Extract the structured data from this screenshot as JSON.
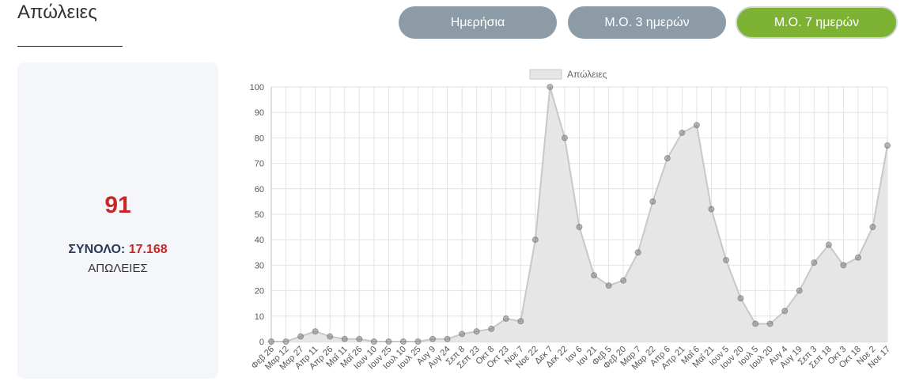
{
  "header": {
    "title": "Απώλειες"
  },
  "tabs": [
    {
      "label": "Ημερήσια",
      "active": false
    },
    {
      "label": "Μ.Ο. 3 ημερών",
      "active": false
    },
    {
      "label": "Μ.Ο. 7 ημερών",
      "active": true
    }
  ],
  "stats": {
    "value": "91",
    "total_label": "ΣΥΝΟΛΟ:",
    "total_value": "17.168",
    "caption": "ΑΠΩΛΕΙΕΣ"
  },
  "colors": {
    "tab_inactive": "#8c9ba5",
    "tab_active": "#7db233",
    "highlight_red": "#c62828",
    "series_fill": "#e6e6e6",
    "series_line": "#c8c8c8",
    "point": "#6b6b6b"
  },
  "chart_data": {
    "type": "area",
    "legend": {
      "position": "top",
      "label": "Απώλειες"
    },
    "grid": true,
    "ylim": [
      0,
      100
    ],
    "yticks": [
      0,
      10,
      20,
      30,
      40,
      50,
      60,
      70,
      80,
      90,
      100
    ],
    "xticks": [
      "Φεβ 26",
      "Μαρ 12",
      "Μαρ 27",
      "Απρ 11",
      "Απρ 26",
      "Μαΐ 11",
      "Μαΐ 26",
      "Ιουν 10",
      "Ιουν 25",
      "Ιουλ 10",
      "Ιουλ 25",
      "Αυγ 9",
      "Αυγ 24",
      "Σεπ 8",
      "Σεπ 23",
      "Οκτ 8",
      "Οκτ 23",
      "Νοε 7",
      "Νοε 22",
      "Δεκ 7",
      "Δεκ 22",
      "Ιαν 6",
      "Ιαν 21",
      "Φεβ 5",
      "Φεβ 20",
      "Μαρ 7",
      "Μαρ 22",
      "Απρ 6",
      "Απρ 21",
      "Μαΐ 6",
      "Μαΐ 21",
      "Ιουν 5",
      "Ιουν 20",
      "Ιουλ 5",
      "Ιουλ 20",
      "Αυγ 4",
      "Αυγ 19",
      "Σεπ 3",
      "Σεπ 18",
      "Οκτ 3",
      "Οκτ 18",
      "Νοε 2",
      "Νοε 17"
    ],
    "series": [
      {
        "name": "Απώλειες",
        "points": [
          [
            "Φεβ 26",
            0
          ],
          [
            "Μαρ 12",
            0
          ],
          [
            "Μαρ 27",
            2
          ],
          [
            "Απρ 11",
            4
          ],
          [
            "Απρ 26",
            2
          ],
          [
            "Μαΐ 11",
            1
          ],
          [
            "Μαΐ 26",
            1
          ],
          [
            "Ιουν 10",
            0
          ],
          [
            "Ιουν 25",
            0
          ],
          [
            "Ιουλ 10",
            0
          ],
          [
            "Ιουλ 25",
            0
          ],
          [
            "Αυγ 9",
            1
          ],
          [
            "Αυγ 24",
            1
          ],
          [
            "Σεπ 8",
            3
          ],
          [
            "Σεπ 23",
            4
          ],
          [
            "Οκτ 8",
            5
          ],
          [
            "Οκτ 23",
            9
          ],
          [
            "Νοε 7",
            8
          ],
          [
            "Νοε 22",
            40
          ],
          [
            "Δεκ 7",
            100
          ],
          [
            "Δεκ 22",
            80
          ],
          [
            "Ιαν 6",
            45
          ],
          [
            "Ιαν 21",
            26
          ],
          [
            "Φεβ 5",
            22
          ],
          [
            "Φεβ 20",
            24
          ],
          [
            "Μαρ 7",
            35
          ],
          [
            "Μαρ 22",
            55
          ],
          [
            "Απρ 6",
            72
          ],
          [
            "Απρ 21",
            82
          ],
          [
            "Μαΐ 6",
            85
          ],
          [
            "Μαΐ 21",
            52
          ],
          [
            "Ιουν 5",
            32
          ],
          [
            "Ιουν 20",
            17
          ],
          [
            "Ιουλ 5",
            7
          ],
          [
            "Ιουλ 20",
            7
          ],
          [
            "Αυγ 4",
            12
          ],
          [
            "Αυγ 19",
            20
          ],
          [
            "Σεπ 3",
            31
          ],
          [
            "Σεπ 18",
            38
          ],
          [
            "Οκτ 3",
            30
          ],
          [
            "Οκτ 18",
            33
          ],
          [
            "Νοε 2",
            45
          ],
          [
            "Νοε 17",
            77
          ]
        ]
      }
    ]
  }
}
